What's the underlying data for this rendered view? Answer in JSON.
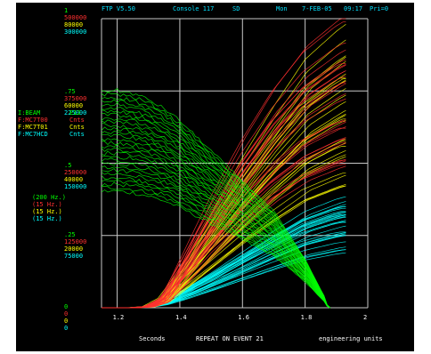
{
  "header": {
    "app": "FTP V5.50",
    "console": "Console 117",
    "slot": "SD",
    "day": "Mon",
    "date": "7-FEB-05",
    "time": "09:17",
    "priority": "Pri=0"
  },
  "footer": {
    "x_unit": "Seconds",
    "trigger": "REPEAT ON EVENT 21",
    "units_mode": "engineering units"
  },
  "colors": {
    "background": "#000000",
    "grid": "#c8c8c8",
    "beam": "#00ff00",
    "mc7t00": "#ff3030",
    "mc7t01": "#ffff00",
    "mc7hcd": "#00ffff",
    "header_text": "#00e0ff",
    "scale_top": "#ff3b6b"
  },
  "chart_data": {
    "type": "line",
    "xlim": [
      1.15,
      2.0
    ],
    "x_ticks": [
      "1.2",
      "1.4",
      "1.6",
      "1.8",
      "2"
    ],
    "grid": true,
    "devices": [
      {
        "name": "I:BEAM",
        "units": "E12",
        "rate": "(200  Hz.)",
        "color": "#00ff00",
        "scale": [
          "1",
          ".75",
          ".5",
          ".25",
          "0"
        ],
        "ylim": [
          0,
          1
        ]
      },
      {
        "name": "F:MC7T00",
        "units": "Cnts",
        "rate": "(15   Hz.)",
        "color": "#ff3030",
        "scale": [
          "500000",
          "375000",
          "250000",
          "125000",
          "0"
        ],
        "ylim": [
          0,
          500000
        ]
      },
      {
        "name": "F:MC7T01",
        "units": "Cnts",
        "rate": "(15   Hz.)",
        "color": "#ffff00",
        "scale": [
          "80000",
          "60000",
          "40000",
          "20000",
          "0"
        ],
        "ylim": [
          0,
          80000
        ]
      },
      {
        "name": "F:MC7HCD",
        "units": "Cnts",
        "rate": "(15   Hz.)",
        "color": "#00ffff",
        "scale": [
          "300000",
          "225000",
          "150000",
          "75000",
          "0"
        ],
        "ylim": [
          0,
          300000
        ]
      }
    ],
    "series": [
      {
        "name": "I:BEAM",
        "x": [
          1.15,
          1.2,
          1.25,
          1.3,
          1.35,
          1.4,
          1.5,
          1.6,
          1.7,
          1.8,
          1.85,
          1.87,
          1.88
        ],
        "y": [
          0.72,
          0.72,
          0.71,
          0.69,
          0.66,
          0.62,
          0.52,
          0.42,
          0.32,
          0.16,
          0.06,
          0.02,
          0.0
        ]
      },
      {
        "name": "F:MC7T00",
        "x": [
          1.15,
          1.25,
          1.3,
          1.35,
          1.4,
          1.5,
          1.6,
          1.7,
          1.8,
          1.9,
          1.93
        ],
        "y": [
          0,
          0,
          2000,
          15000,
          60000,
          150000,
          230000,
          300000,
          355000,
          390000,
          398000
        ]
      },
      {
        "name": "F:MC7T01",
        "x": [
          1.15,
          1.25,
          1.3,
          1.35,
          1.4,
          1.5,
          1.6,
          1.7,
          1.8,
          1.9,
          1.93
        ],
        "y": [
          0,
          0,
          300,
          2500,
          8000,
          20000,
          32000,
          43000,
          53000,
          59000,
          60500
        ]
      },
      {
        "name": "F:MC7HCD",
        "x": [
          1.15,
          1.25,
          1.3,
          1.35,
          1.4,
          1.5,
          1.6,
          1.7,
          1.8,
          1.9,
          1.93
        ],
        "y": [
          0,
          0,
          1000,
          5000,
          12000,
          28000,
          45000,
          62000,
          78000,
          88000,
          90000
        ]
      }
    ]
  }
}
